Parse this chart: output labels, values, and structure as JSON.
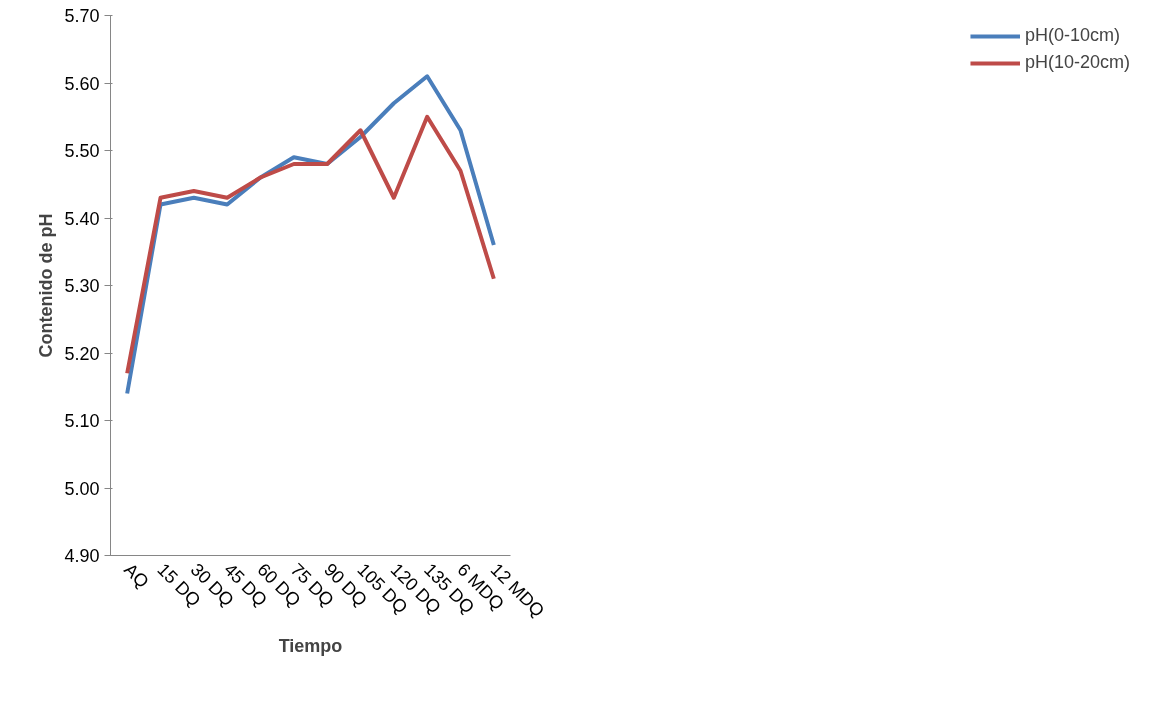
{
  "chart_data": {
    "type": "line",
    "xlabel": "Tiempo",
    "ylabel": "Contenido de pH",
    "categories": [
      "AQ",
      "15 DQ",
      "30 DQ",
      "45 DQ",
      "60 DQ",
      "75 DQ",
      "90 DQ",
      "105 DQ",
      "120 DQ",
      "135 DQ",
      "6 MDQ",
      "12 MDQ"
    ],
    "series": [
      {
        "name": "pH(0-10cm)",
        "color": "#4a7ebb",
        "values": [
          5.14,
          5.42,
          5.43,
          5.42,
          5.46,
          5.49,
          5.48,
          5.52,
          5.57,
          5.61,
          5.53,
          5.36
        ]
      },
      {
        "name": "pH(10-20cm)",
        "color": "#be4b48",
        "values": [
          5.17,
          5.43,
          5.44,
          5.43,
          5.46,
          5.48,
          5.48,
          5.53,
          5.43,
          5.55,
          5.47,
          5.31
        ]
      }
    ],
    "ylim": [
      4.9,
      5.7
    ],
    "yticks": [
      {
        "value": 4.9,
        "label": "4.90"
      },
      {
        "value": 5.0,
        "label": "5.00"
      },
      {
        "value": 5.1,
        "label": "5.10"
      },
      {
        "value": 5.2,
        "label": "5.20"
      },
      {
        "value": 5.3,
        "label": "5.30"
      },
      {
        "value": 5.4,
        "label": "5.40"
      },
      {
        "value": 5.5,
        "label": "5.50"
      },
      {
        "value": 5.6,
        "label": "5.60"
      },
      {
        "value": 5.7,
        "label": "5.70"
      }
    ],
    "grid": false,
    "legend": "right",
    "marker": "none",
    "line_style": "solid"
  }
}
